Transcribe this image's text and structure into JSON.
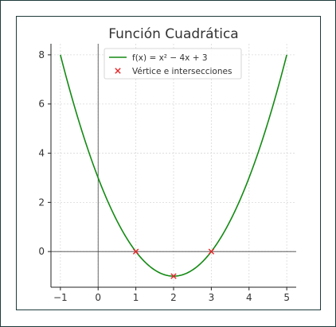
{
  "chart_data": {
    "type": "line",
    "title": "Función Cuadrática",
    "xlabel": "",
    "ylabel": "",
    "xlim": [
      -1.25,
      5.25
    ],
    "ylim": [
      -1.45,
      8.45
    ],
    "xticks": [
      -1,
      0,
      1,
      2,
      3,
      4,
      5
    ],
    "yticks": [
      0,
      2,
      4,
      6,
      8
    ],
    "xtick_labels": [
      "−1",
      "0",
      "1",
      "2",
      "3",
      "4",
      "5"
    ],
    "ytick_labels": [
      "0",
      "2",
      "4",
      "6",
      "8"
    ],
    "grid": true,
    "legend_position": "top-center",
    "series": [
      {
        "name": "f(x) = x² − 4x + 3",
        "kind": "line",
        "color": "#138a13",
        "function": {
          "a": 1,
          "b": -4,
          "c": 3
        },
        "x_range": [
          -1,
          5
        ]
      },
      {
        "name": "Vértice e intersecciones",
        "kind": "scatter",
        "marker": "x",
        "color": "#e8262a",
        "points": [
          {
            "x": 1,
            "y": 0
          },
          {
            "x": 2,
            "y": -1
          },
          {
            "x": 3,
            "y": 0
          }
        ]
      }
    ]
  }
}
